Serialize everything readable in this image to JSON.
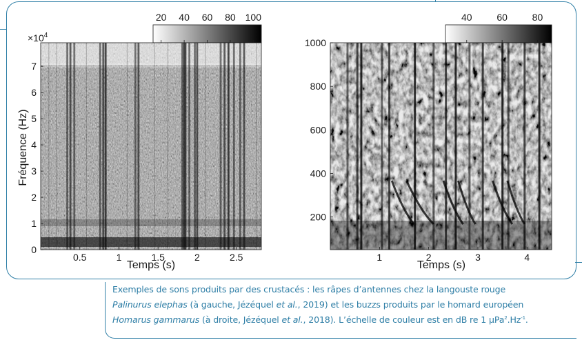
{
  "figure": {
    "left": {
      "colorbar_ticks": [
        "20",
        "40",
        "60",
        "80",
        "100"
      ],
      "exponent_base": "×10",
      "exponent_power": "4",
      "y_ticks": [
        "0",
        "1",
        "2",
        "3",
        "4",
        "5",
        "6",
        "7"
      ],
      "x_ticks": [
        "0.5",
        "1",
        "1.5",
        "2",
        "2.5"
      ],
      "ylabel": "Fréquence (Hz)",
      "xlabel": "Temps (s)"
    },
    "right": {
      "colorbar_ticks": [
        "40",
        "60",
        "80"
      ],
      "y_ticks": [
        "200",
        "400",
        "600",
        "800",
        "1000"
      ],
      "x_ticks": [
        "1",
        "2",
        "3",
        "4"
      ],
      "xlabel": "Temps (s)"
    }
  },
  "caption": {
    "l1": "Exemples de sons produits par des crustacés : les râpes d’antennes chez la langouste rouge",
    "l2_species": "Palinurus elephas",
    "l2_a": " (à gauche, Jézéquel ",
    "l2_etal": "et al.",
    "l2_b": ", 2019) et les buzzs produits par le homard européen",
    "l3_species": "Homarus gammarus",
    "l3_a": " (à droite, Jézéquel ",
    "l3_etal": "et al.",
    "l3_b": ", 2018). L’échelle de couleur est en dB re 1 µPa",
    "l3_sup1": "2",
    "l3_c": ".Hz",
    "l3_sup2": "-1",
    "l3_end": "."
  },
  "colors": {
    "accent": "#2e7ea6"
  }
}
